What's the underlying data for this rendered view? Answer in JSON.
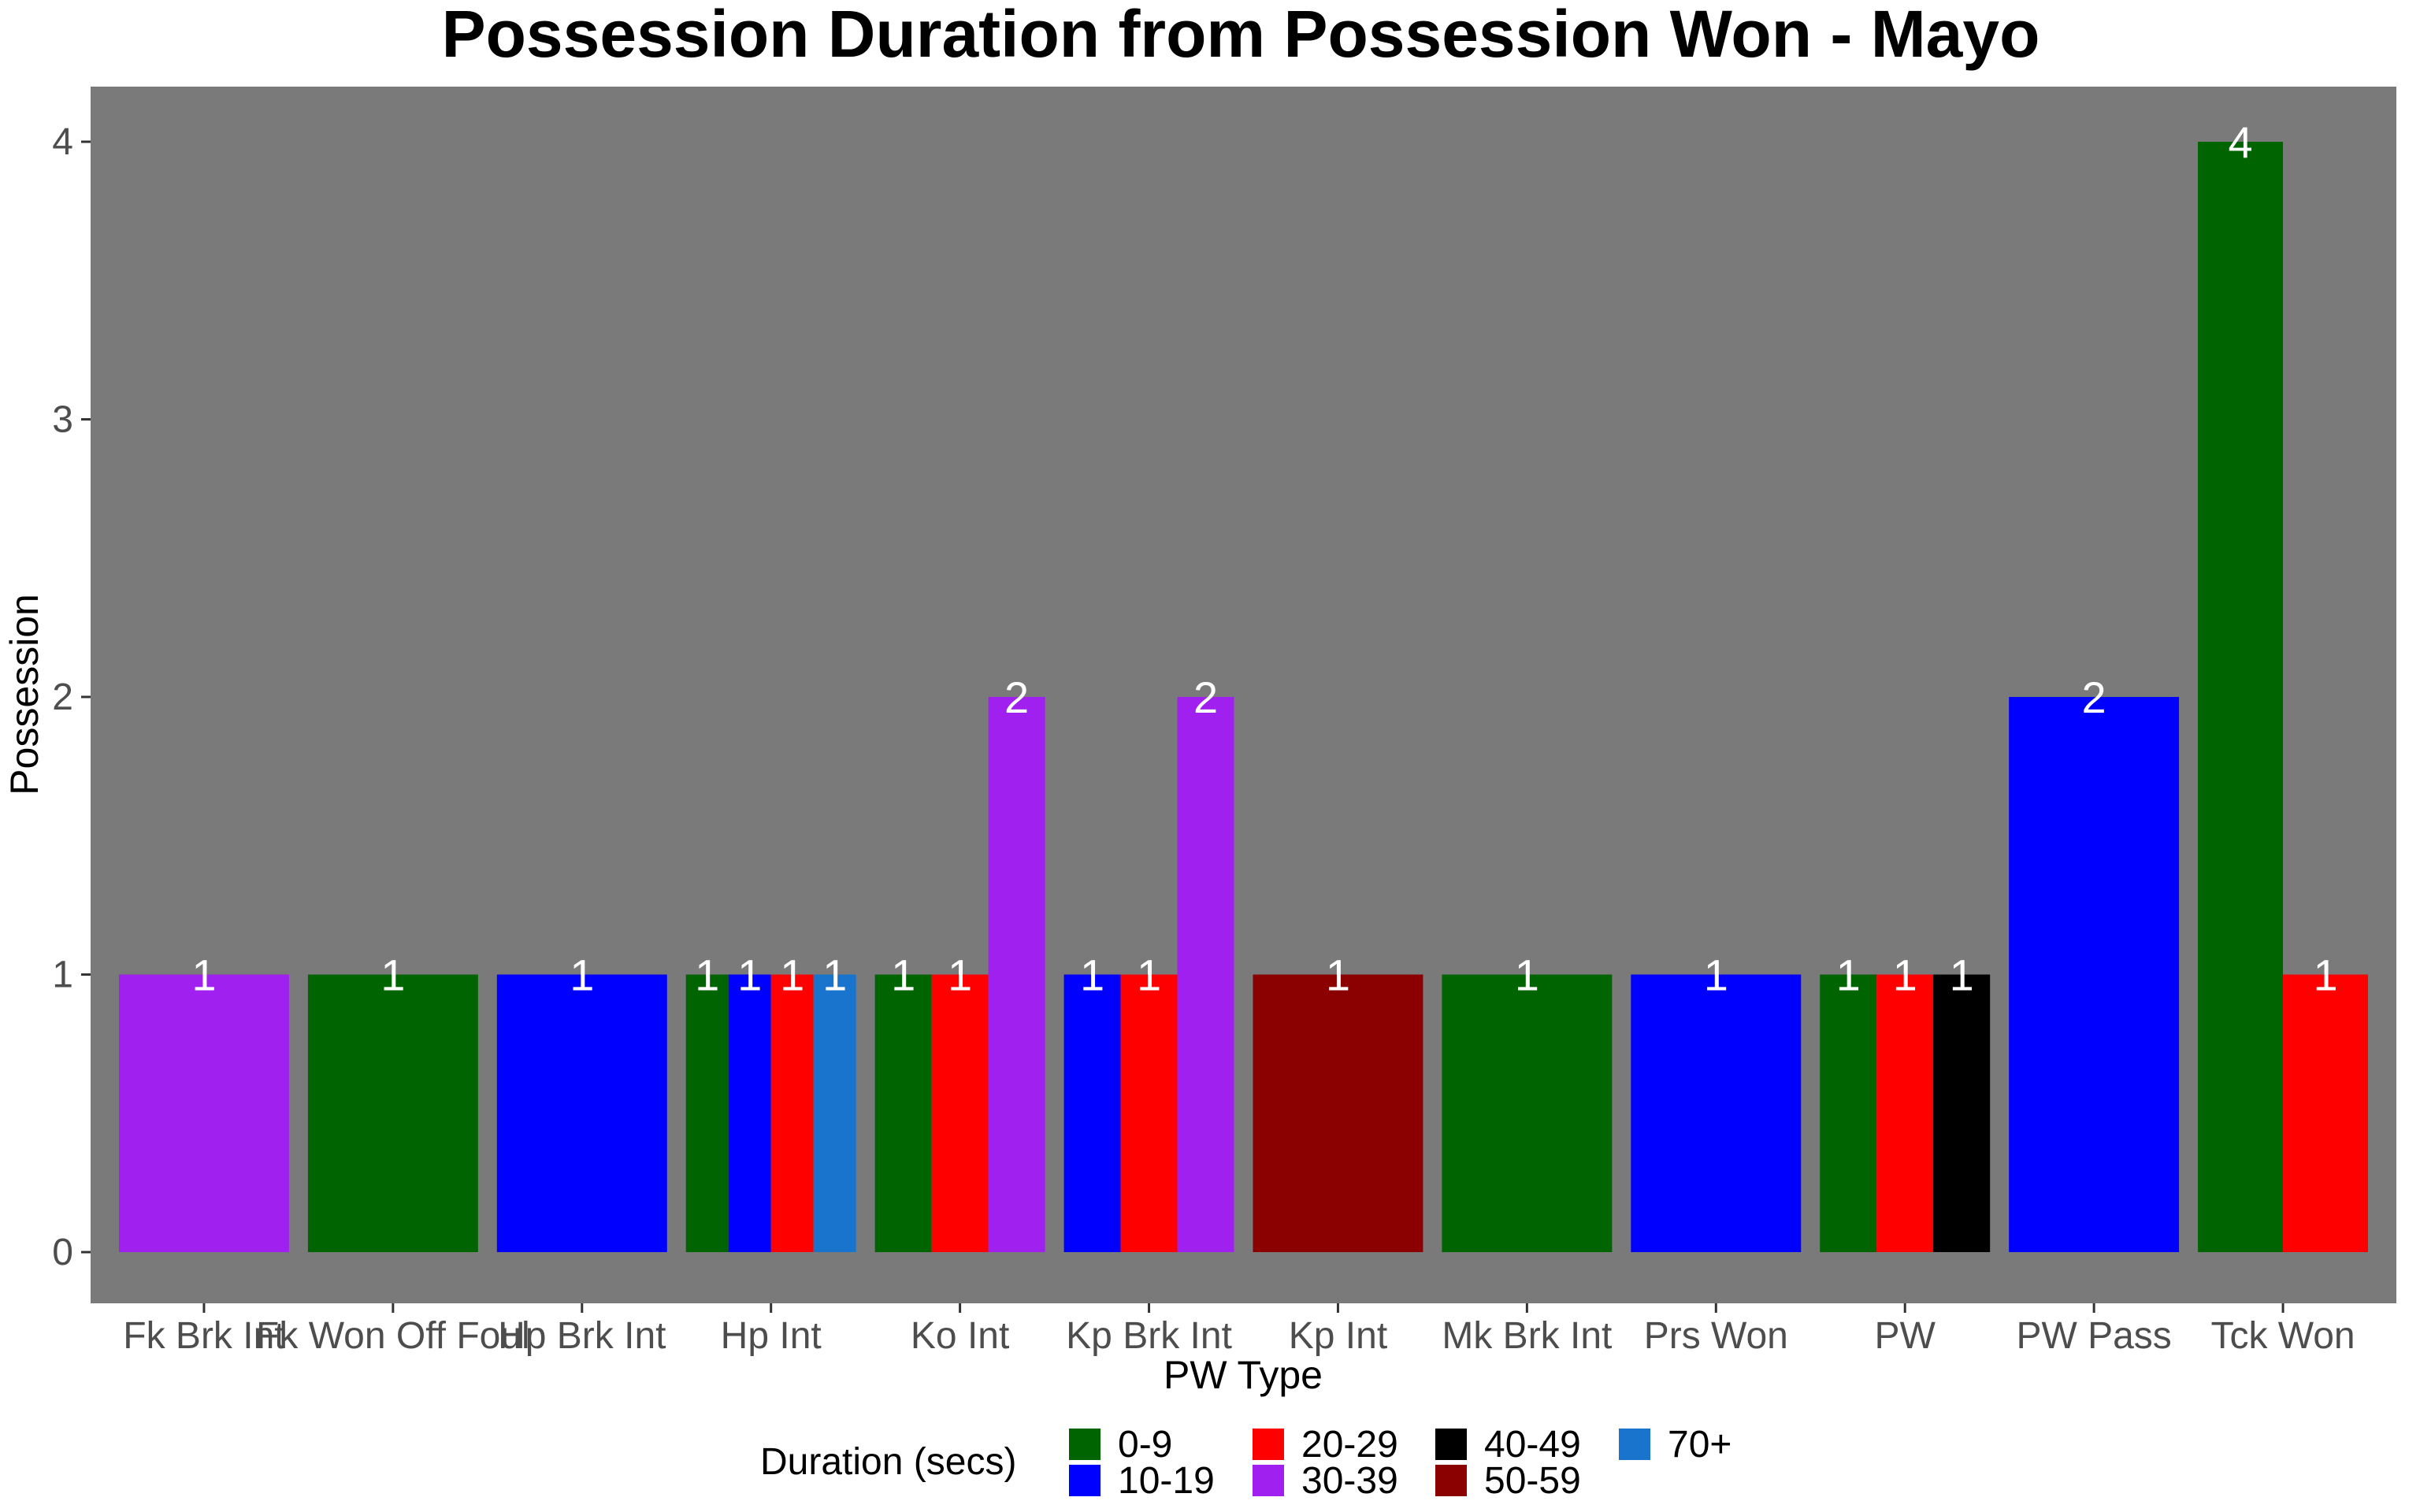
{
  "chart_data": {
    "type": "bar",
    "title": "Possession Duration from Possession Won - Mayo",
    "xlabel": "PW Type",
    "ylabel": "Possession",
    "ylim": [
      0,
      4
    ],
    "yticks": [
      0,
      1,
      2,
      3,
      4
    ],
    "grid": false,
    "panel_color": "#7a7a7a",
    "legend": {
      "title": "Duration (secs)",
      "placement": "bottom",
      "entries": [
        {
          "label": "0-9",
          "color": "#006400"
        },
        {
          "label": "10-19",
          "color": "#0000ff"
        },
        {
          "label": "20-29",
          "color": "#ff0000"
        },
        {
          "label": "30-39",
          "color": "#a020f0"
        },
        {
          "label": "40-49",
          "color": "#000000"
        },
        {
          "label": "50-59",
          "color": "#8b0000"
        },
        {
          "label": "70+",
          "color": "#1874cd"
        }
      ]
    },
    "categories": [
      {
        "name": "Fk Brk Int",
        "bars": [
          {
            "duration": "30-39",
            "value": 1
          }
        ]
      },
      {
        "name": "Fk Won Off Foul",
        "bars": [
          {
            "duration": "0-9",
            "value": 1
          }
        ]
      },
      {
        "name": "Hp Brk Int",
        "bars": [
          {
            "duration": "10-19",
            "value": 1
          }
        ]
      },
      {
        "name": "Hp Int",
        "bars": [
          {
            "duration": "0-9",
            "value": 1
          },
          {
            "duration": "10-19",
            "value": 1
          },
          {
            "duration": "20-29",
            "value": 1
          },
          {
            "duration": "70+",
            "value": 1
          }
        ]
      },
      {
        "name": "Ko Int",
        "bars": [
          {
            "duration": "0-9",
            "value": 1
          },
          {
            "duration": "20-29",
            "value": 1
          },
          {
            "duration": "30-39",
            "value": 2
          }
        ]
      },
      {
        "name": "Kp Brk Int",
        "bars": [
          {
            "duration": "10-19",
            "value": 1
          },
          {
            "duration": "20-29",
            "value": 1
          },
          {
            "duration": "30-39",
            "value": 2
          }
        ]
      },
      {
        "name": "Kp Int",
        "bars": [
          {
            "duration": "50-59",
            "value": 1
          }
        ]
      },
      {
        "name": "Mk Brk Int",
        "bars": [
          {
            "duration": "0-9",
            "value": 1
          }
        ]
      },
      {
        "name": "Prs Won",
        "bars": [
          {
            "duration": "10-19",
            "value": 1
          }
        ]
      },
      {
        "name": "PW",
        "bars": [
          {
            "duration": "0-9",
            "value": 1
          },
          {
            "duration": "20-29",
            "value": 1
          },
          {
            "duration": "40-49",
            "value": 1
          }
        ]
      },
      {
        "name": "PW Pass",
        "bars": [
          {
            "duration": "10-19",
            "value": 2
          }
        ]
      },
      {
        "name": "Tck Won",
        "bars": [
          {
            "duration": "0-9",
            "value": 4
          },
          {
            "duration": "20-29",
            "value": 1
          }
        ]
      }
    ]
  }
}
